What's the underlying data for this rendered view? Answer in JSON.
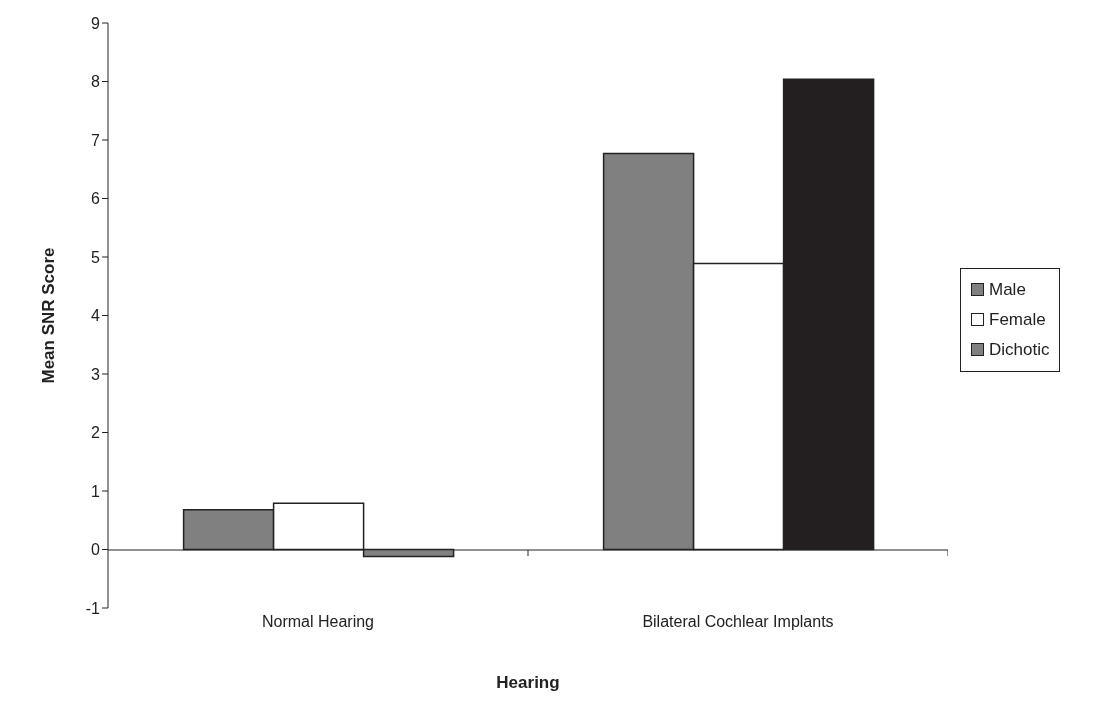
{
  "chart_data": {
    "type": "bar",
    "xlabel": "Hearing",
    "ylabel": "Mean SNR Score",
    "categories": [
      "Normal Hearing",
      "Bilateral Cochlear Implants"
    ],
    "series": [
      {
        "name": "Male",
        "color": "#808080",
        "values": [
          0.68,
          6.77
        ]
      },
      {
        "name": "Female",
        "color": "#ffffff",
        "values": [
          0.79,
          4.89
        ]
      },
      {
        "name": "Dichotic",
        "color": "#808080",
        "colors": [
          "#808080",
          "#231f20"
        ],
        "values": [
          -0.12,
          8.04
        ]
      }
    ],
    "ylim": [
      -1,
      9
    ],
    "yticks": [
      -1,
      0,
      1,
      2,
      3,
      4,
      5,
      6,
      7,
      8,
      9
    ],
    "legend": "right"
  }
}
